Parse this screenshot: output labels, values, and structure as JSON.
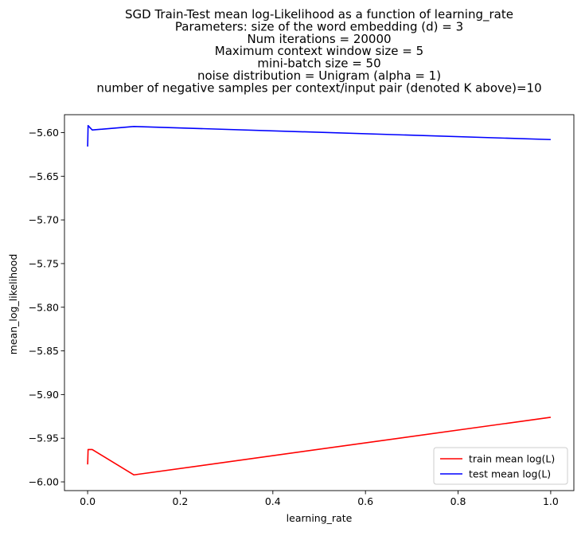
{
  "chart_data": {
    "type": "line",
    "title_lines": [
      "SGD Train-Test mean log-Likelihood as a function of learning_rate",
      "Parameters: size of the word embedding (d) = 3",
      "Num iterations = 20000",
      "Maximum context window size = 5",
      "mini-batch size = 50",
      "noise distribution = Unigram (alpha = 1)",
      "number of negative samples per context/input pair (denoted K above)=10"
    ],
    "xlabel": "learning_rate",
    "ylabel": "mean_log_likelihood",
    "xlim": [
      -0.05,
      1.05
    ],
    "ylim": [
      -6.01,
      -5.5795
    ],
    "xticks": [
      0.0,
      0.2,
      0.4,
      0.6,
      0.8,
      1.0
    ],
    "xtick_labels": [
      "0.0",
      "0.2",
      "0.4",
      "0.6",
      "0.8",
      "1.0"
    ],
    "yticks": [
      -6.0,
      -5.95,
      -5.9,
      -5.85,
      -5.8,
      -5.75,
      -5.7,
      -5.65,
      -5.6
    ],
    "ytick_labels": [
      "−6.00",
      "−5.95",
      "−5.90",
      "−5.85",
      "−5.80",
      "−5.75",
      "−5.70",
      "−5.65",
      "−5.60"
    ],
    "grid": false,
    "legend_position": "lower-right",
    "series": [
      {
        "name": "train mean log(L)",
        "color": "#ff0000",
        "x": [
          0.0001,
          0.001,
          0.01,
          0.1,
          1.0
        ],
        "y": [
          -5.98,
          -5.963,
          -5.963,
          -5.992,
          -5.926
        ]
      },
      {
        "name": "test mean log(L)",
        "color": "#0000ff",
        "x": [
          0.0001,
          0.001,
          0.01,
          0.1,
          1.0
        ],
        "y": [
          -5.616,
          -5.592,
          -5.597,
          -5.593,
          -5.608
        ]
      }
    ]
  }
}
